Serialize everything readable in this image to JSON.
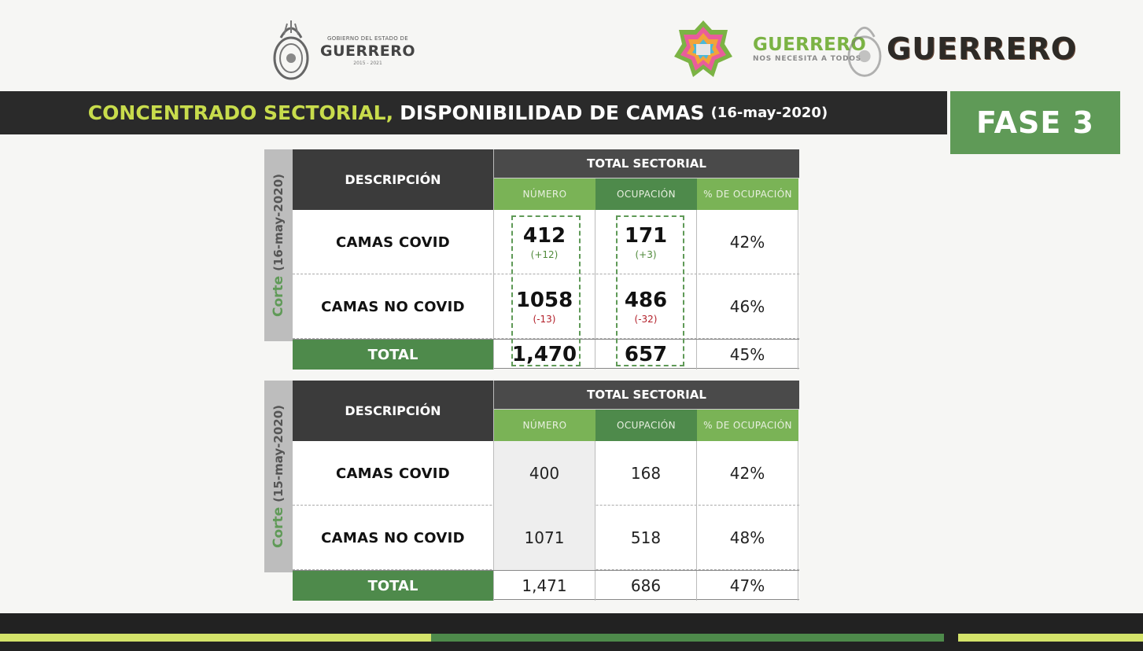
{
  "header": {
    "gov_small": "GOBIERNO DEL ESTADO DE",
    "gov_name": "GUERRERO",
    "gov_years": "2015 - 2021",
    "campaign_title": "GUERRERO",
    "campaign_sub": "NOS NECESITA A TODOS",
    "brand_name": "GUERRERO"
  },
  "title_bar": {
    "main": "CONCENTRADO SECTORIAL,",
    "sub": "DISPONIBILIDAD DE CAMAS",
    "date": "(16-may-2020)"
  },
  "fase": "FASE 3",
  "tables": [
    {
      "side_prefix": "Corte",
      "side_date": "(16-may-2020)",
      "desc_header": "DESCRIPCIÓN",
      "group_header": "TOTAL SECTORIAL",
      "col_numero": "NÚMERO",
      "col_ocupacion": "OCUPACIÓN",
      "col_pct": "% DE OCUPACIÓN",
      "rows": [
        {
          "desc": "CAMAS COVID",
          "numero": "412",
          "numero_delta": "(+12)",
          "ocupacion": "171",
          "ocupacion_delta": "(+3)",
          "pct": "42%"
        },
        {
          "desc": "CAMAS NO COVID",
          "numero": "1058",
          "numero_delta": "(-13)",
          "ocupacion": "486",
          "ocupacion_delta": "(-32)",
          "pct": "46%"
        }
      ],
      "total": {
        "label": "TOTAL",
        "numero": "1,470",
        "ocupacion": "657",
        "pct": "45%"
      }
    },
    {
      "side_prefix": "Corte",
      "side_date": "(15-may-2020)",
      "desc_header": "DESCRIPCIÓN",
      "group_header": "TOTAL SECTORIAL",
      "col_numero": "NÚMERO",
      "col_ocupacion": "OCUPACIÓN",
      "col_pct": "% DE OCUPACIÓN",
      "rows": [
        {
          "desc": "CAMAS COVID",
          "numero": "400",
          "ocupacion": "168",
          "pct": "42%"
        },
        {
          "desc": "CAMAS NO COVID",
          "numero": "1071",
          "ocupacion": "518",
          "pct": "48%"
        }
      ],
      "total": {
        "label": "TOTAL",
        "numero": "1,471",
        "ocupacion": "686",
        "pct": "47%"
      }
    }
  ],
  "colors": {
    "accent_yellow": "#c8dc4c",
    "green": "#5f9a57",
    "dark": "#2a2a2a",
    "delta_positive": "#4f8a3a",
    "delta_negative": "#b3202a"
  }
}
